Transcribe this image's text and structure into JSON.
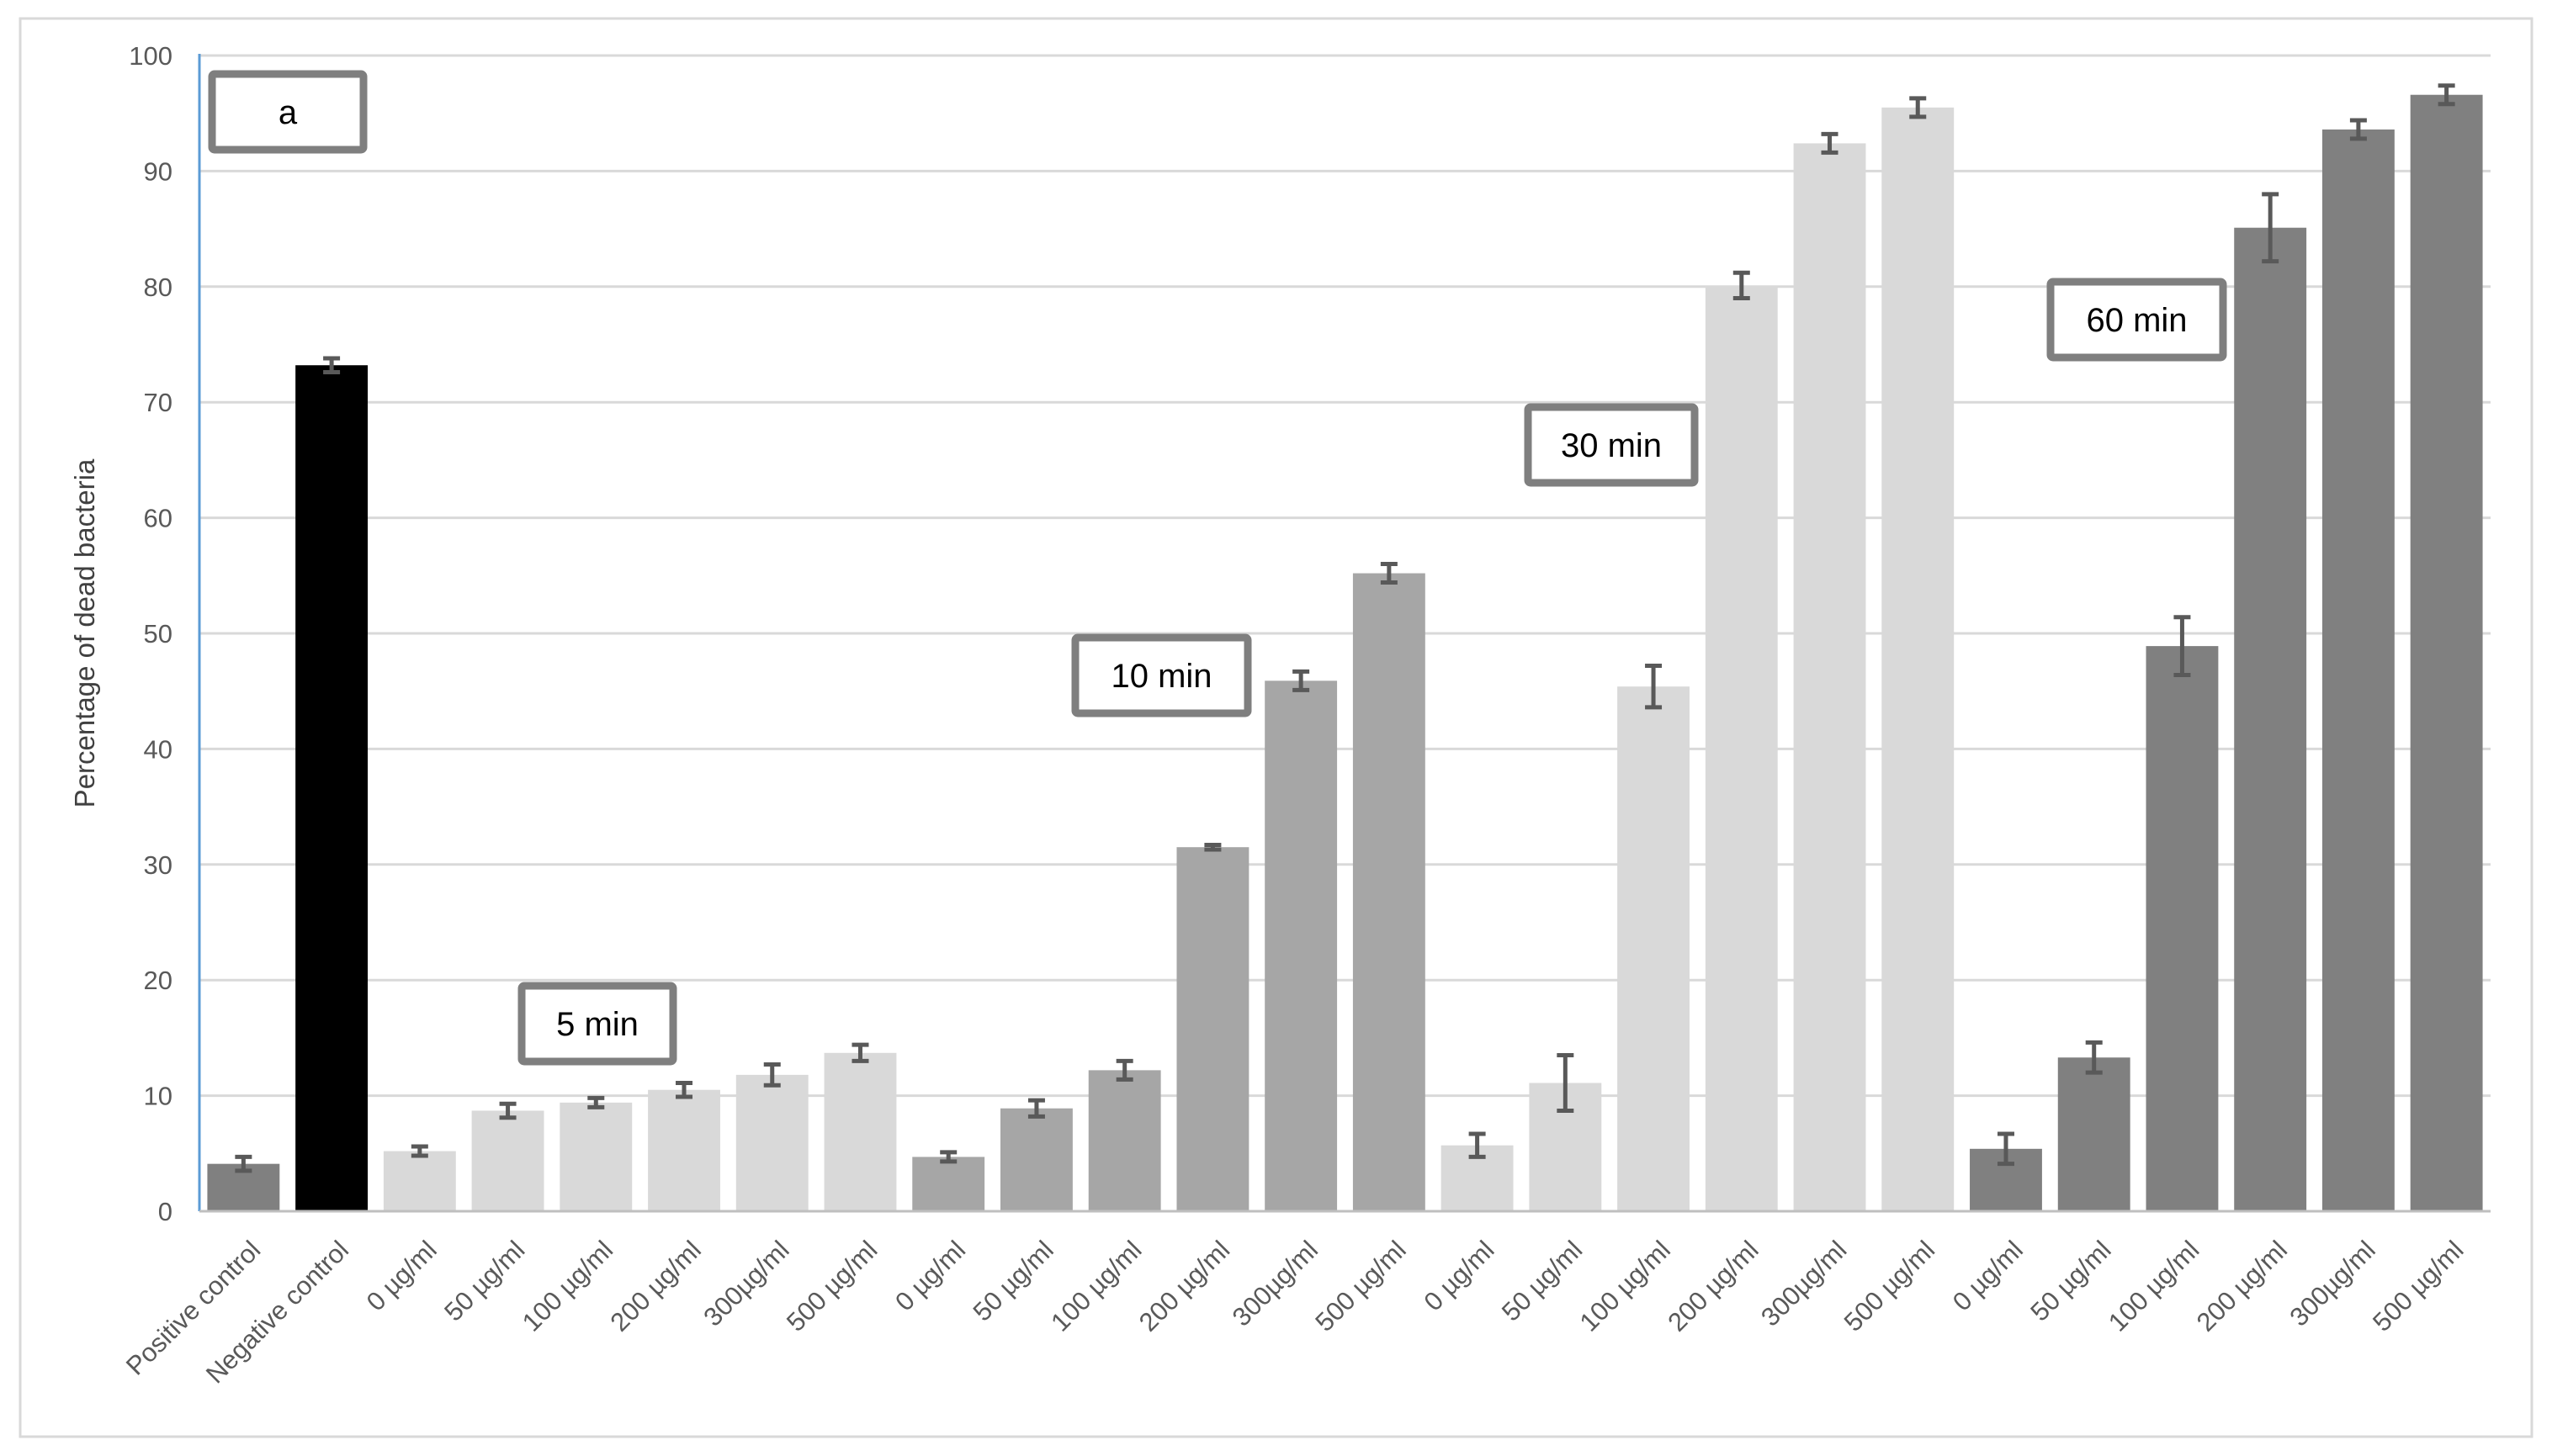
{
  "chart_data": {
    "type": "bar",
    "title": "",
    "xlabel": "",
    "ylabel": "Percentage of dead bacteria",
    "ylim": [
      0,
      100
    ],
    "yticks": [
      0,
      10,
      20,
      30,
      40,
      50,
      60,
      70,
      80,
      90,
      100
    ],
    "grid": true,
    "legend": "none",
    "categories": [
      "Positive control",
      "Negative control",
      "0 µg/ml",
      "50 µg/ml",
      "100 µg/ml",
      "200 µg/ml",
      "300µg/ml",
      "500 µg/ml",
      "0 µg/ml",
      "50 µg/ml",
      "100 µg/ml",
      "200 µg/ml",
      "300µg/ml",
      "500 µg/ml",
      "0 µg/ml",
      "50 µg/ml",
      "100 µg/ml",
      "200 µg/ml",
      "300µg/ml",
      "500 µg/ml",
      "0 µg/ml",
      "50 µg/ml",
      "100 µg/ml",
      "200 µg/ml",
      "300µg/ml",
      "500 µg/ml"
    ],
    "values": [
      4.1,
      73.2,
      5.2,
      8.7,
      9.4,
      10.5,
      11.8,
      13.7,
      4.7,
      8.9,
      12.2,
      31.5,
      45.9,
      55.2,
      5.7,
      11.1,
      45.4,
      80.1,
      92.4,
      95.5,
      5.4,
      13.3,
      48.9,
      85.1,
      93.6,
      96.6
    ],
    "errors": [
      0.6,
      0.6,
      0.4,
      0.6,
      0.4,
      0.6,
      0.9,
      0.7,
      0.4,
      0.7,
      0.8,
      0.2,
      0.8,
      0.8,
      1.0,
      2.4,
      1.8,
      1.1,
      0.8,
      0.8,
      1.3,
      1.3,
      2.5,
      2.9,
      0.8,
      0.8
    ],
    "colors": [
      "#808080",
      "#000000",
      "#d9d9d9",
      "#d9d9d9",
      "#d9d9d9",
      "#d9d9d9",
      "#d9d9d9",
      "#d9d9d9",
      "#a6a6a6",
      "#a6a6a6",
      "#a6a6a6",
      "#a6a6a6",
      "#a6a6a6",
      "#a6a6a6",
      "#d9d9d9",
      "#d9d9d9",
      "#d9d9d9",
      "#d9d9d9",
      "#d9d9d9",
      "#d9d9d9",
      "#808080",
      "#808080",
      "#808080",
      "#808080",
      "#808080",
      "#808080"
    ],
    "errorbar_color": "#595959",
    "annotations": [
      {
        "id": "panel-label",
        "text": "a"
      },
      {
        "id": "5min",
        "text": "5 min"
      },
      {
        "id": "10min",
        "text": "10 min"
      },
      {
        "id": "30min",
        "text": "30 min"
      },
      {
        "id": "60min",
        "text": "60 min"
      }
    ]
  }
}
